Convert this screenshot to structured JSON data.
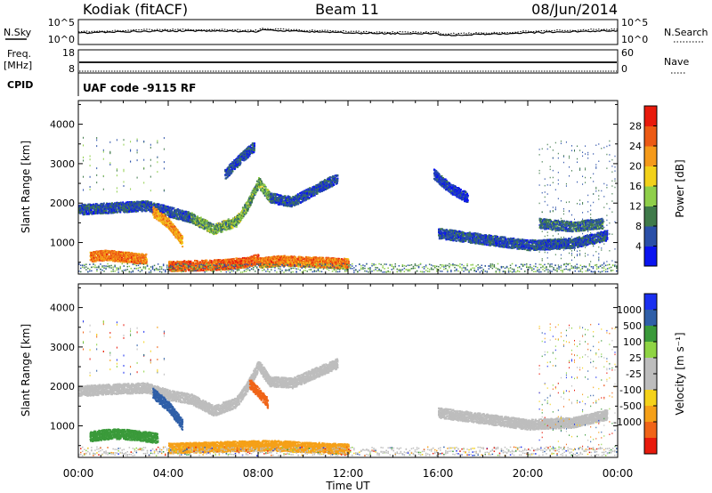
{
  "header": {
    "station": "Kodiak (fitACF)",
    "beam": "Beam 11",
    "date": "08/Jun/2014"
  },
  "summary_panels": {
    "nsky": {
      "left_label": "N.Sky",
      "right_label": "N.Search",
      "left_ticks": [
        "10^5",
        "10^0"
      ],
      "right_ticks": [
        "10^5",
        "10^0"
      ]
    },
    "freq": {
      "left_label_line1": "Freq.",
      "left_label_line2": "[MHz]",
      "right_label": "Nave",
      "left_ticks": [
        "18",
        "8"
      ],
      "right_ticks": [
        "60",
        "0"
      ]
    },
    "cpid": {
      "label": "CPID",
      "program": "UAF code -9115 RF"
    }
  },
  "colors": {
    "power_scale": [
      "#0a14f0",
      "#2a4fa8",
      "#3f7a4a",
      "#8fcf4a",
      "#f2d11a",
      "#f59a1a",
      "#ec5a14",
      "#e81a0c"
    ],
    "velocity_scale": [
      "#e81a0c",
      "#f06418",
      "#f5a018",
      "#f5d21a",
      "#bdbdbd",
      "#bdbdbd",
      "#8fd444",
      "#3a9a3a",
      "#2f5fa8",
      "#1a2ff0"
    ],
    "groundscatter": "#bdbdbd"
  },
  "chart_data": [
    {
      "type": "heatmap",
      "panel": "power",
      "xlabel": "Time UT",
      "ylabel": "Slant Range [km]",
      "xlim": [
        "00:00",
        "24:00"
      ],
      "ylim": [
        200,
        4600
      ],
      "x_ticks": [
        "00:00",
        "04:00",
        "08:00",
        "12:00",
        "16:00",
        "20:00",
        "00:00"
      ],
      "y_ticks": [
        1000,
        2000,
        3000,
        4000
      ],
      "colorbar": {
        "label": "Power [dB]",
        "ticks": [
          4,
          8,
          12,
          16,
          20,
          24,
          28
        ],
        "range": [
          0,
          32
        ]
      },
      "features": [
        {
          "kind": "band",
          "t": [
            0.0,
            1.5,
            3.0,
            4.0,
            5.0
          ],
          "r": [
            1850,
            1900,
            1950,
            1800,
            1650
          ],
          "level": 6
        },
        {
          "kind": "band",
          "t": [
            5.0,
            6.0,
            7.0,
            7.5,
            8.0,
            8.5
          ],
          "r": [
            1650,
            1350,
            1550,
            1950,
            2550,
            2150
          ],
          "level": 12
        },
        {
          "kind": "band",
          "t": [
            8.5,
            9.5,
            10.5,
            11.5
          ],
          "r": [
            2150,
            2050,
            2350,
            2650
          ],
          "level": 6
        },
        {
          "kind": "band",
          "t": [
            6.5,
            7.2,
            7.8
          ],
          "r": [
            2750,
            3150,
            3450
          ],
          "level": 6
        },
        {
          "kind": "band",
          "t": [
            3.3,
            4.0,
            4.6
          ],
          "r": [
            1800,
            1500,
            1050
          ],
          "level": 22
        },
        {
          "kind": "band",
          "t": [
            0.5,
            1.2,
            2.0,
            3.0
          ],
          "r": [
            650,
            700,
            650,
            600
          ],
          "level": 24
        },
        {
          "kind": "band",
          "t": [
            4.0,
            5.0,
            6.5,
            7.5,
            8.0
          ],
          "r": [
            420,
            430,
            460,
            520,
            600
          ],
          "level": 26
        },
        {
          "kind": "band",
          "t": [
            8.0,
            9.0,
            10.5,
            12.0
          ],
          "r": [
            500,
            560,
            520,
            480
          ],
          "level": 24
        },
        {
          "kind": "band",
          "t": [
            16.0,
            18.0,
            20.0,
            22.0,
            23.5
          ],
          "r": [
            1250,
            1100,
            950,
            1000,
            1200
          ],
          "level": 6
        },
        {
          "kind": "band",
          "t": [
            20.5,
            22.0,
            23.3
          ],
          "r": [
            1500,
            1420,
            1500
          ],
          "level": 8
        },
        {
          "kind": "band",
          "t": [
            15.8,
            16.5,
            17.3
          ],
          "r": [
            2750,
            2400,
            2150
          ],
          "level": 4
        }
      ]
    },
    {
      "type": "heatmap",
      "panel": "velocity",
      "xlabel": "Time UT",
      "ylabel": "Slant Range [km]",
      "xlim": [
        "00:00",
        "24:00"
      ],
      "ylim": [
        200,
        4600
      ],
      "x_ticks": [
        "00:00",
        "04:00",
        "08:00",
        "12:00",
        "16:00",
        "20:00",
        "00:00"
      ],
      "y_ticks": [
        1000,
        2000,
        3000,
        4000
      ],
      "colorbar": {
        "label": "Velocity [m s⁻¹]",
        "tick_labels": [
          "1000",
          "500",
          "100",
          "25",
          "-25",
          "-100",
          "-500",
          "-1000"
        ]
      },
      "features": [
        {
          "kind": "band",
          "t": [
            0.0,
            1.5,
            3.0,
            4.0,
            5.0
          ],
          "r": [
            1900,
            1950,
            1980,
            1800,
            1700
          ],
          "level": "gs"
        },
        {
          "kind": "band",
          "t": [
            5.0,
            6.0,
            7.0,
            7.5,
            8.0,
            8.5
          ],
          "r": [
            1700,
            1400,
            1600,
            2000,
            2550,
            2150
          ],
          "level": "gs"
        },
        {
          "kind": "band",
          "t": [
            8.5,
            9.5,
            10.5,
            11.5
          ],
          "r": [
            2150,
            2100,
            2350,
            2600
          ],
          "level": "gs"
        },
        {
          "kind": "band",
          "t": [
            3.3,
            4.0,
            4.6
          ],
          "r": [
            1850,
            1500,
            1050
          ],
          "level": 500
        },
        {
          "kind": "band",
          "t": [
            0.5,
            1.5,
            2.5,
            3.5
          ],
          "r": [
            750,
            820,
            780,
            700
          ],
          "level": 100
        },
        {
          "kind": "band",
          "t": [
            4.0,
            5.5,
            7.0,
            8.5,
            10.0,
            12.0
          ],
          "r": [
            450,
            470,
            500,
            520,
            480,
            430
          ],
          "level": -100
        },
        {
          "kind": "band",
          "t": [
            16.0,
            18.0,
            20.0,
            22.0,
            23.5
          ],
          "r": [
            1350,
            1200,
            1050,
            1100,
            1300
          ],
          "level": "gs"
        },
        {
          "kind": "band",
          "t": [
            7.6,
            8.0,
            8.4
          ],
          "r": [
            2100,
            1850,
            1600
          ],
          "level": -500
        }
      ]
    }
  ]
}
